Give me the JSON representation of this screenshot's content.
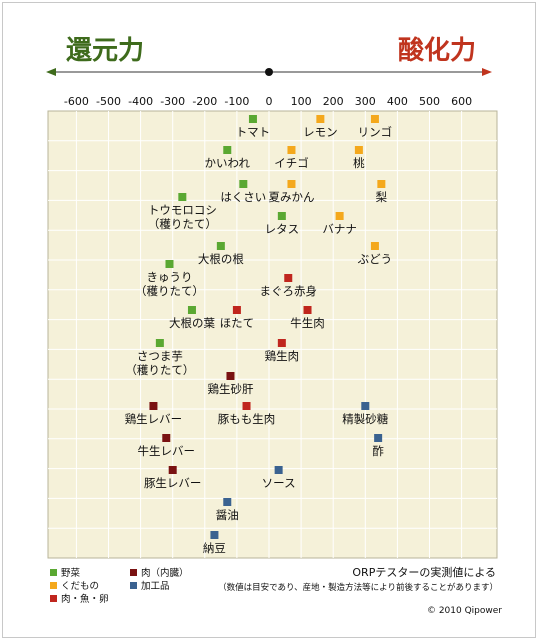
{
  "header": {
    "left": "還元力",
    "right": "酸化力"
  },
  "chart_data": {
    "type": "scatter",
    "xlim": [
      -700,
      700
    ],
    "xticks": [
      -600,
      -500,
      -400,
      -300,
      -200,
      -100,
      0,
      100,
      200,
      300,
      400,
      500,
      600
    ],
    "categories": [
      {
        "name": "野菜",
        "color": "#5aa832"
      },
      {
        "name": "くだもの",
        "color": "#f4a81c"
      },
      {
        "name": "肉・魚・卵",
        "color": "#c0261e"
      },
      {
        "name": "肉（内臓）",
        "color": "#7a1212"
      },
      {
        "name": "加工品",
        "color": "#3a6290"
      }
    ],
    "points": [
      {
        "label": "トマト",
        "x": -50,
        "cat": 0
      },
      {
        "label": "レモン",
        "x": 160,
        "cat": 1
      },
      {
        "label": "リンゴ",
        "x": 330,
        "cat": 1
      },
      {
        "label": "かいわれ",
        "x": -130,
        "cat": 0
      },
      {
        "label": "イチゴ",
        "x": 70,
        "cat": 1
      },
      {
        "label": "桃",
        "x": 280,
        "cat": 1
      },
      {
        "label": "はくさい",
        "x": -80,
        "cat": 0
      },
      {
        "label": "夏みかん",
        "x": 70,
        "cat": 1
      },
      {
        "label": "梨",
        "x": 350,
        "cat": 1
      },
      {
        "label": "トウモロコシ\n（穫りたて）",
        "x": -270,
        "cat": 0
      },
      {
        "label": "レタス",
        "x": 40,
        "cat": 0
      },
      {
        "label": "バナナ",
        "x": 220,
        "cat": 1
      },
      {
        "label": "大根の根",
        "x": -150,
        "cat": 0
      },
      {
        "label": "ぶどう",
        "x": 330,
        "cat": 1
      },
      {
        "label": "きゅうり\n（穫りたて）",
        "x": -310,
        "cat": 0
      },
      {
        "label": "まぐろ赤身",
        "x": 60,
        "cat": 2
      },
      {
        "label": "大根の葉",
        "x": -240,
        "cat": 0
      },
      {
        "label": "ほたて",
        "x": -100,
        "cat": 2
      },
      {
        "label": "牛生肉",
        "x": 120,
        "cat": 2
      },
      {
        "label": "さつま芋\n（穫りたて）",
        "x": -340,
        "cat": 0
      },
      {
        "label": "鶏生肉",
        "x": 40,
        "cat": 2
      },
      {
        "label": "鶏生砂肝",
        "x": -120,
        "cat": 3
      },
      {
        "label": "鶏生レバー",
        "x": -360,
        "cat": 3
      },
      {
        "label": "豚もも生肉",
        "x": -70,
        "cat": 2
      },
      {
        "label": "精製砂糖",
        "x": 300,
        "cat": 4
      },
      {
        "label": "牛生レバー",
        "x": -320,
        "cat": 3
      },
      {
        "label": "酢",
        "x": 340,
        "cat": 4
      },
      {
        "label": "豚生レバー",
        "x": -300,
        "cat": 3
      },
      {
        "label": "ソース",
        "x": 30,
        "cat": 4
      },
      {
        "label": "醤油",
        "x": -130,
        "cat": 4
      },
      {
        "label": "納豆",
        "x": -170,
        "cat": 4
      }
    ]
  },
  "notes": {
    "source": "ORPテスターの実測値による",
    "disclaimer": "（数値は目安であり、産地・製造方法等により前後することがあります）",
    "copyright": "© 2010 Qipower"
  }
}
